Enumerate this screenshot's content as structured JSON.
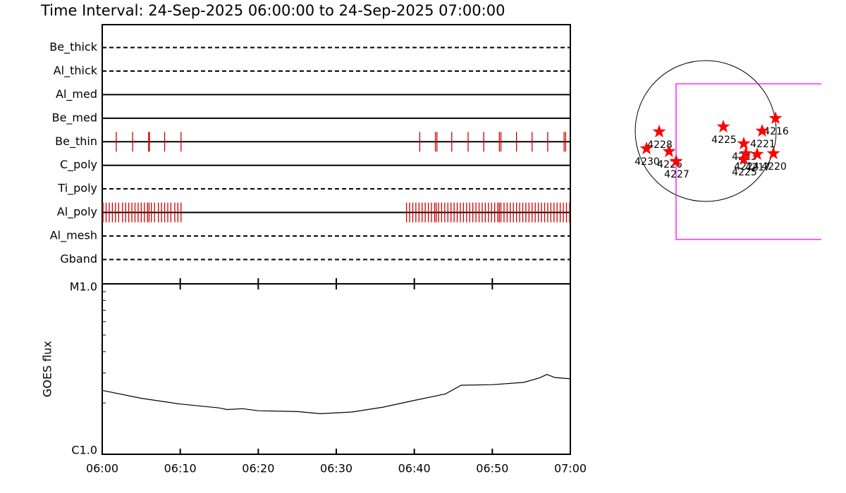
{
  "title": "Time Interval: 24-Sep-2025 06:00:00 to 24-Sep-2025 07:00:00",
  "chart_data": [
    {
      "type": "events",
      "color": "#cc0000",
      "xlim": [
        0,
        60
      ],
      "rows": [
        {
          "name": "Be_thick",
          "style": "dashed",
          "events": []
        },
        {
          "name": "Al_thick",
          "style": "dashed",
          "events": []
        },
        {
          "name": "Al_med",
          "style": "solid",
          "events": []
        },
        {
          "name": "Be_med",
          "style": "solid",
          "events": []
        },
        {
          "name": "Be_thin",
          "style": "solid",
          "events": [
            1.8,
            3.9,
            5.95,
            6.05,
            8.0,
            10.1,
            40.7,
            42.7,
            42.9,
            44.8,
            46.9,
            48.9,
            50.9,
            51.1,
            53.1,
            55.1,
            57.1,
            59.2,
            59.4
          ]
        },
        {
          "name": "C_poly",
          "style": "solid",
          "events": []
        },
        {
          "name": "Ti_poly",
          "style": "dashed",
          "events": []
        },
        {
          "name": "Al_poly",
          "style": "solid",
          "events": [
            0.1,
            0.5,
            0.9,
            1.3,
            1.7,
            2.1,
            2.6,
            3.0,
            3.4,
            3.8,
            4.2,
            4.6,
            5.0,
            5.4,
            5.8,
            6.0,
            6.3,
            6.7,
            7.2,
            7.6,
            8.0,
            8.4,
            8.8,
            9.3,
            9.7,
            10.1,
            39.0,
            39.4,
            39.8,
            40.2,
            40.6,
            41.0,
            41.4,
            41.8,
            42.2,
            42.6,
            42.8,
            43.1,
            43.5,
            43.9,
            44.3,
            44.7,
            45.1,
            45.5,
            45.9,
            46.3,
            46.7,
            47.1,
            47.5,
            47.9,
            48.3,
            48.7,
            49.1,
            49.5,
            49.9,
            50.3,
            50.7,
            50.9,
            51.1,
            51.5,
            51.9,
            52.3,
            52.7,
            53.1,
            53.5,
            53.9,
            54.3,
            54.7,
            55.1,
            55.5,
            55.9,
            56.3,
            56.7,
            57.1,
            57.5,
            57.9,
            58.3,
            58.7,
            59.1,
            59.5,
            59.9
          ]
        },
        {
          "name": "Al_mesh",
          "style": "dashed",
          "events": []
        },
        {
          "name": "Gband",
          "style": "dashed",
          "events": []
        }
      ]
    },
    {
      "type": "line",
      "y_label": "GOES flux",
      "log_scale": true,
      "color": "#000000",
      "x": [
        0,
        5,
        10,
        15,
        16,
        18,
        20,
        25,
        28,
        32,
        36,
        40,
        44,
        46,
        50,
        54,
        56,
        57,
        58,
        60
      ],
      "values": [
        2.37e-06,
        2.13e-06,
        1.97e-06,
        1.87e-06,
        1.83e-06,
        1.85e-06,
        1.8e-06,
        1.78e-06,
        1.73e-06,
        1.77e-06,
        1.89e-06,
        2.07e-06,
        2.26e-06,
        2.54e-06,
        2.56e-06,
        2.64e-06,
        2.8e-06,
        2.94e-06,
        2.82e-06,
        2.77e-06
      ],
      "xlim": [
        0,
        60
      ],
      "xticks": [
        {
          "value": 0,
          "label": "06:00"
        },
        {
          "value": 10,
          "label": "06:10"
        },
        {
          "value": 20,
          "label": "06:20"
        },
        {
          "value": 30,
          "label": "06:30"
        },
        {
          "value": 40,
          "label": "06:40"
        },
        {
          "value": 50,
          "label": "06:50"
        },
        {
          "value": 60,
          "label": "07:00"
        }
      ],
      "ylim": [
        1e-06,
        1e-05
      ],
      "yticks": [
        {
          "value": 1e-06,
          "label": "C1.0"
        },
        {
          "value": 1e-05,
          "label": "M1.0"
        }
      ],
      "minor_yticks": [
        2e-06,
        3e-06,
        4e-06,
        5e-06,
        6e-06,
        7e-06,
        8e-06,
        9e-06
      ]
    },
    {
      "type": "scatter",
      "color": "#ff0000",
      "disk_color": "#000000",
      "fov_color": "#ff00ff",
      "fov": {
        "x": [
          -0.42,
          1.64
        ],
        "y": [
          -1.54,
          0.67
        ]
      },
      "points": [
        {
          "x": -0.66,
          "y": -0.01,
          "label": "4228"
        },
        {
          "x": -0.84,
          "y": -0.25,
          "label": "4230"
        },
        {
          "x": -0.52,
          "y": -0.29,
          "label": "4226"
        },
        {
          "x": -0.42,
          "y": -0.43,
          "label": "4227"
        },
        {
          "x": 0.25,
          "y": 0.06,
          "label": "4225"
        },
        {
          "x": 0.99,
          "y": 0.18,
          "label": "4216"
        },
        {
          "x": 0.8,
          "y": 0.0,
          "label": "4221"
        },
        {
          "x": 0.54,
          "y": -0.18,
          "label": "4223"
        },
        {
          "x": 0.57,
          "y": -0.32,
          "label": "4224"
        },
        {
          "x": 0.73,
          "y": -0.33,
          "label": "4217"
        },
        {
          "x": 0.96,
          "y": -0.32,
          "label": "4220"
        },
        {
          "x": 0.54,
          "y": -0.4,
          "label": "4225"
        }
      ]
    }
  ]
}
